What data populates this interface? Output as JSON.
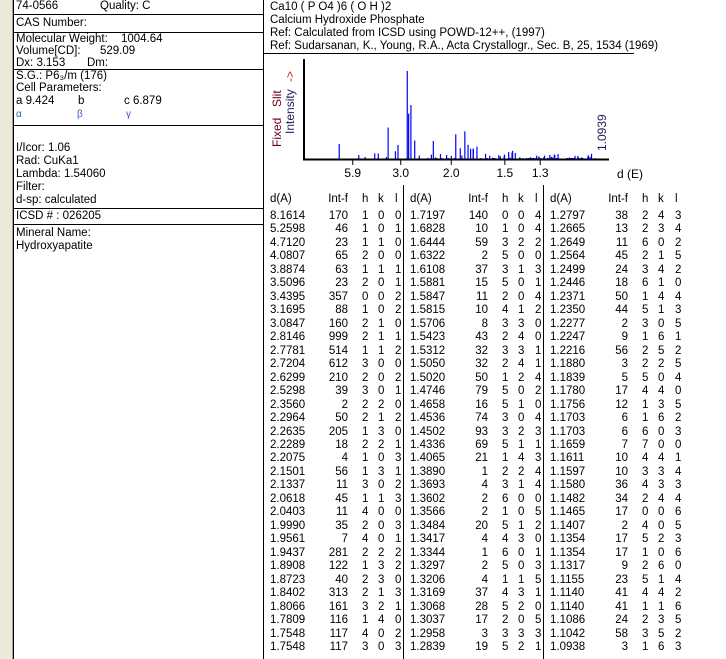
{
  "card": {
    "pdf_number": "74-0566",
    "quality": "Quality: C",
    "cas": "CAS Number:",
    "mw_label": "Molecular Weight:",
    "mw_value": "1004.64",
    "vol_label": "Volume[CD]:",
    "vol_value": "529.09",
    "dx": "Dx:  3.153",
    "dm": "Dm:",
    "sg": "S.G.: P6₃/m (176)",
    "cell_label": "Cell Parameters:",
    "a": "a  9.424",
    "b": "b",
    "c": "c  6.879",
    "alpha": "α",
    "beta": "β",
    "gamma": "γ",
    "icor": "I/Icor:   1.06",
    "rad": "Rad: CuKa1",
    "lambda": "Lambda: 1.54060",
    "filter": "Filter:",
    "dsp": "d-sp: calculated",
    "icsd": "ICSD # : 026205",
    "mineral_label": "Mineral Name:",
    "mineral": "Hydroxyapatite"
  },
  "header": {
    "formula": "Ca10 ( P O4 )6 ( O H )2",
    "name": "Calcium Hydroxide Phosphate",
    "ref1": "Ref:  Calculated from ICSD using POWD-12++, (1997)",
    "ref2": "Ref: Sudarsanan, K., Young, R.A., Acta Crystallogr., Sec. B, 25, 1534 (1969)"
  },
  "chart_data": {
    "type": "bar",
    "x_ticks": [
      "5.9",
      "3.0",
      "2.0",
      "1.5",
      "1.3"
    ],
    "xlabel": "d (E)",
    "ylabel_fixed": "Fixed",
    "ylabel_slit": "Slit",
    "ylabel_intensity": "Intensity",
    "ylabel_arrow": "->",
    "annotation": "1.0939",
    "bar_color": "#0000ff",
    "ymax": 999
  },
  "table": {
    "headers": [
      "d(A)",
      "Int-f",
      "h",
      "k",
      "l"
    ],
    "columns": [
      [
        [
          "8.1614",
          "170",
          "1",
          "0",
          "0"
        ],
        [
          "5.2598",
          "46",
          "1",
          "0",
          "1"
        ],
        [
          "4.7120",
          "23",
          "1",
          "1",
          "0"
        ],
        [
          "4.0807",
          "65",
          "2",
          "0",
          "0"
        ],
        [
          "3.8874",
          "63",
          "1",
          "1",
          "1"
        ],
        [
          "3.5096",
          "23",
          "2",
          "0",
          "1"
        ],
        [
          "3.4395",
          "357",
          "0",
          "0",
          "2"
        ],
        [
          "3.1695",
          "88",
          "1",
          "0",
          "2"
        ],
        [
          "3.0847",
          "160",
          "2",
          "1",
          "0"
        ],
        [
          "2.8146",
          "999",
          "2",
          "1",
          "1"
        ],
        [
          "2.7781",
          "514",
          "1",
          "1",
          "2"
        ],
        [
          "2.7204",
          "612",
          "3",
          "0",
          "0"
        ],
        [
          "2.6299",
          "210",
          "2",
          "0",
          "2"
        ],
        [
          "2.5298",
          "39",
          "3",
          "0",
          "1"
        ],
        [
          "2.3560",
          "2",
          "2",
          "2",
          "0"
        ],
        [
          "2.2964",
          "50",
          "2",
          "1",
          "2"
        ],
        [
          "2.2635",
          "205",
          "1",
          "3",
          "0"
        ],
        [
          "2.2289",
          "18",
          "2",
          "2",
          "1"
        ],
        [
          "2.2075",
          "4",
          "1",
          "0",
          "3"
        ],
        [
          "2.1501",
          "56",
          "1",
          "3",
          "1"
        ],
        [
          "2.1337",
          "11",
          "3",
          "0",
          "2"
        ],
        [
          "2.0618",
          "45",
          "1",
          "1",
          "3"
        ],
        [
          "2.0403",
          "11",
          "4",
          "0",
          "0"
        ],
        [
          "1.9990",
          "35",
          "2",
          "0",
          "3"
        ],
        [
          "1.9561",
          "7",
          "4",
          "0",
          "1"
        ],
        [
          "1.9437",
          "281",
          "2",
          "2",
          "2"
        ],
        [
          "1.8908",
          "122",
          "1",
          "3",
          "2"
        ],
        [
          "1.8723",
          "40",
          "2",
          "3",
          "0"
        ],
        [
          "1.8402",
          "313",
          "2",
          "1",
          "3"
        ],
        [
          "1.8066",
          "161",
          "3",
          "2",
          "1"
        ],
        [
          "1.7809",
          "116",
          "1",
          "4",
          "0"
        ],
        [
          "1.7548",
          "117",
          "4",
          "0",
          "2"
        ],
        [
          "1.7548",
          "117",
          "3",
          "0",
          "3"
        ]
      ],
      [
        [
          "1.7197",
          "140",
          "0",
          "0",
          "4"
        ],
        [
          "1.6828",
          "10",
          "1",
          "0",
          "4"
        ],
        [
          "1.6444",
          "59",
          "3",
          "2",
          "2"
        ],
        [
          "1.6322",
          "2",
          "5",
          "0",
          "0"
        ],
        [
          "1.6108",
          "37",
          "3",
          "1",
          "3"
        ],
        [
          "1.5881",
          "15",
          "5",
          "0",
          "1"
        ],
        [
          "1.5847",
          "11",
          "2",
          "0",
          "4"
        ],
        [
          "1.5815",
          "10",
          "4",
          "1",
          "2"
        ],
        [
          "1.5706",
          "8",
          "3",
          "3",
          "0"
        ],
        [
          "1.5423",
          "43",
          "2",
          "4",
          "0"
        ],
        [
          "1.5312",
          "32",
          "3",
          "3",
          "1"
        ],
        [
          "1.5050",
          "32",
          "2",
          "4",
          "1"
        ],
        [
          "1.5020",
          "50",
          "1",
          "2",
          "4"
        ],
        [
          "1.4746",
          "79",
          "5",
          "0",
          "2"
        ],
        [
          "1.4658",
          "16",
          "5",
          "1",
          "0"
        ],
        [
          "1.4536",
          "74",
          "3",
          "0",
          "4"
        ],
        [
          "1.4502",
          "93",
          "3",
          "2",
          "3"
        ],
        [
          "1.4336",
          "69",
          "5",
          "1",
          "1"
        ],
        [
          "1.4065",
          "21",
          "1",
          "4",
          "3"
        ],
        [
          "1.3890",
          "1",
          "2",
          "2",
          "4"
        ],
        [
          "1.3693",
          "4",
          "3",
          "1",
          "4"
        ],
        [
          "1.3602",
          "2",
          "6",
          "0",
          "0"
        ],
        [
          "1.3566",
          "2",
          "1",
          "0",
          "5"
        ],
        [
          "1.3484",
          "20",
          "5",
          "1",
          "2"
        ],
        [
          "1.3417",
          "4",
          "4",
          "3",
          "0"
        ],
        [
          "1.3344",
          "1",
          "6",
          "0",
          "1"
        ],
        [
          "1.3297",
          "2",
          "5",
          "0",
          "3"
        ],
        [
          "1.3206",
          "4",
          "1",
          "1",
          "5"
        ],
        [
          "1.3169",
          "37",
          "4",
          "3",
          "1"
        ],
        [
          "1.3068",
          "28",
          "5",
          "2",
          "0"
        ],
        [
          "1.3037",
          "17",
          "2",
          "0",
          "5"
        ],
        [
          "1.2958",
          "3",
          "3",
          "3",
          "3"
        ],
        [
          "1.2839",
          "19",
          "5",
          "2",
          "1"
        ]
      ],
      [
        [
          "1.2797",
          "38",
          "2",
          "4",
          "3"
        ],
        [
          "1.2665",
          "13",
          "2",
          "3",
          "4"
        ],
        [
          "1.2649",
          "11",
          "6",
          "0",
          "2"
        ],
        [
          "1.2564",
          "45",
          "2",
          "1",
          "5"
        ],
        [
          "1.2499",
          "24",
          "3",
          "4",
          "2"
        ],
        [
          "1.2446",
          "18",
          "6",
          "1",
          "0"
        ],
        [
          "1.2371",
          "50",
          "1",
          "4",
          "4"
        ],
        [
          "1.2350",
          "44",
          "5",
          "1",
          "3"
        ],
        [
          "1.2277",
          "2",
          "3",
          "0",
          "5"
        ],
        [
          "1.2247",
          "9",
          "1",
          "6",
          "1"
        ],
        [
          "1.2216",
          "56",
          "2",
          "5",
          "2"
        ],
        [
          "1.1880",
          "3",
          "2",
          "2",
          "5"
        ],
        [
          "1.1839",
          "5",
          "5",
          "0",
          "4"
        ],
        [
          "1.1780",
          "17",
          "4",
          "4",
          "0"
        ],
        [
          "1.1756",
          "12",
          "1",
          "3",
          "5"
        ],
        [
          "1.1703",
          "6",
          "1",
          "6",
          "2"
        ],
        [
          "1.1703",
          "6",
          "6",
          "0",
          "3"
        ],
        [
          "1.1659",
          "7",
          "7",
          "0",
          "0"
        ],
        [
          "1.1611",
          "10",
          "4",
          "4",
          "1"
        ],
        [
          "1.1597",
          "10",
          "3",
          "3",
          "4"
        ],
        [
          "1.1580",
          "36",
          "4",
          "3",
          "3"
        ],
        [
          "1.1482",
          "34",
          "2",
          "4",
          "4"
        ],
        [
          "1.1465",
          "17",
          "0",
          "0",
          "6"
        ],
        [
          "1.1407",
          "2",
          "4",
          "0",
          "5"
        ],
        [
          "1.1354",
          "17",
          "5",
          "2",
          "3"
        ],
        [
          "1.1354",
          "17",
          "1",
          "0",
          "6"
        ],
        [
          "1.1317",
          "9",
          "2",
          "6",
          "0"
        ],
        [
          "1.1155",
          "23",
          "5",
          "1",
          "4"
        ],
        [
          "1.1140",
          "41",
          "4",
          "4",
          "2"
        ],
        [
          "1.1140",
          "41",
          "1",
          "1",
          "6"
        ],
        [
          "1.1086",
          "24",
          "2",
          "3",
          "5"
        ],
        [
          "1.1042",
          "58",
          "3",
          "5",
          "2"
        ],
        [
          "1.0938",
          "3",
          "1",
          "6",
          "3"
        ]
      ]
    ]
  }
}
